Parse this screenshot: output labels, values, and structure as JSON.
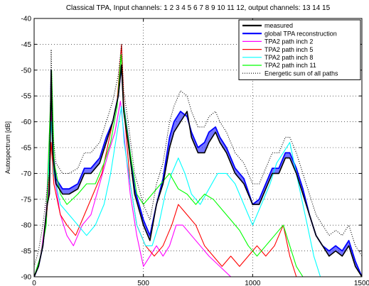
{
  "chart_data": {
    "type": "line",
    "title": "Classical TPA, Input channels: 1  2  3  4  5  6  7  8  9  10  11  12, output channels: 13  14  15",
    "ylabel": "Autospectrum [dB]",
    "xlabel": "",
    "xlim": [
      0,
      1500
    ],
    "ylim": [
      -90,
      -40
    ],
    "x_ticks": [
      0,
      500,
      1000,
      1500
    ],
    "y_ticks": [
      -90,
      -85,
      -80,
      -75,
      -70,
      -65,
      -60,
      -55,
      -50,
      -45,
      -40
    ],
    "grid": true,
    "legend_position": "top-right",
    "series": [
      {
        "name": "measured",
        "color": "#000000",
        "style": "solid",
        "points": [
          [
            0,
            -90
          ],
          [
            20,
            -88
          ],
          [
            40,
            -84
          ],
          [
            60,
            -76
          ],
          [
            70,
            -74
          ],
          [
            78,
            -50
          ],
          [
            85,
            -66
          ],
          [
            100,
            -72
          ],
          [
            130,
            -74
          ],
          [
            160,
            -74
          ],
          [
            200,
            -73
          ],
          [
            230,
            -70
          ],
          [
            260,
            -70
          ],
          [
            300,
            -68
          ],
          [
            330,
            -64
          ],
          [
            360,
            -60
          ],
          [
            385,
            -55
          ],
          [
            400,
            -49
          ],
          [
            410,
            -58
          ],
          [
            430,
            -64
          ],
          [
            460,
            -74
          ],
          [
            500,
            -80
          ],
          [
            530,
            -83
          ],
          [
            560,
            -76
          ],
          [
            590,
            -72
          ],
          [
            620,
            -65
          ],
          [
            640,
            -62
          ],
          [
            670,
            -60
          ],
          [
            700,
            -58
          ],
          [
            720,
            -63
          ],
          [
            750,
            -66
          ],
          [
            780,
            -66
          ],
          [
            800,
            -64
          ],
          [
            830,
            -62
          ],
          [
            850,
            -64
          ],
          [
            880,
            -66
          ],
          [
            920,
            -70
          ],
          [
            960,
            -72
          ],
          [
            1000,
            -76
          ],
          [
            1030,
            -76
          ],
          [
            1060,
            -73
          ],
          [
            1090,
            -70
          ],
          [
            1120,
            -70
          ],
          [
            1150,
            -67
          ],
          [
            1170,
            -67
          ],
          [
            1200,
            -70
          ],
          [
            1230,
            -74
          ],
          [
            1260,
            -78
          ],
          [
            1290,
            -82
          ],
          [
            1320,
            -84
          ],
          [
            1350,
            -86
          ],
          [
            1380,
            -85
          ],
          [
            1410,
            -86
          ],
          [
            1440,
            -84
          ],
          [
            1470,
            -88
          ],
          [
            1500,
            -90
          ]
        ]
      },
      {
        "name": "global TPA reconstruction",
        "color": "#0000ff",
        "style": "solid",
        "fill": true,
        "points": [
          [
            0,
            -90
          ],
          [
            20,
            -88
          ],
          [
            40,
            -84
          ],
          [
            60,
            -76
          ],
          [
            70,
            -73
          ],
          [
            78,
            -50
          ],
          [
            85,
            -65
          ],
          [
            100,
            -71
          ],
          [
            130,
            -73
          ],
          [
            160,
            -73
          ],
          [
            200,
            -72
          ],
          [
            230,
            -69
          ],
          [
            260,
            -69
          ],
          [
            300,
            -67
          ],
          [
            330,
            -63
          ],
          [
            360,
            -60
          ],
          [
            385,
            -55
          ],
          [
            400,
            -49
          ],
          [
            410,
            -57
          ],
          [
            430,
            -63
          ],
          [
            460,
            -73
          ],
          [
            500,
            -79
          ],
          [
            530,
            -82
          ],
          [
            560,
            -76
          ],
          [
            590,
            -71
          ],
          [
            620,
            -63
          ],
          [
            640,
            -60
          ],
          [
            670,
            -58
          ],
          [
            700,
            -59
          ],
          [
            720,
            -62
          ],
          [
            750,
            -65
          ],
          [
            780,
            -64
          ],
          [
            800,
            -62
          ],
          [
            830,
            -61
          ],
          [
            850,
            -63
          ],
          [
            880,
            -65
          ],
          [
            920,
            -69
          ],
          [
            960,
            -71
          ],
          [
            1000,
            -76
          ],
          [
            1030,
            -75
          ],
          [
            1060,
            -72
          ],
          [
            1090,
            -69
          ],
          [
            1120,
            -69
          ],
          [
            1150,
            -66
          ],
          [
            1170,
            -66
          ],
          [
            1200,
            -69
          ],
          [
            1230,
            -73
          ],
          [
            1260,
            -78
          ],
          [
            1290,
            -82
          ],
          [
            1320,
            -84
          ],
          [
            1350,
            -85
          ],
          [
            1380,
            -84
          ],
          [
            1410,
            -85
          ],
          [
            1440,
            -83
          ],
          [
            1470,
            -87
          ],
          [
            1500,
            -90
          ]
        ]
      },
      {
        "name": "TPA2 path inch 2",
        "color": "#ff00ff",
        "style": "solid",
        "points": [
          [
            0,
            -90
          ],
          [
            30,
            -86
          ],
          [
            55,
            -78
          ],
          [
            70,
            -62
          ],
          [
            78,
            -58
          ],
          [
            90,
            -70
          ],
          [
            120,
            -78
          ],
          [
            150,
            -82
          ],
          [
            180,
            -84
          ],
          [
            220,
            -80
          ],
          [
            260,
            -78
          ],
          [
            300,
            -72
          ],
          [
            340,
            -66
          ],
          [
            370,
            -62
          ],
          [
            395,
            -56
          ],
          [
            410,
            -62
          ],
          [
            440,
            -74
          ],
          [
            470,
            -82
          ],
          [
            500,
            -88
          ],
          [
            530,
            -86
          ],
          [
            560,
            -84
          ],
          [
            590,
            -86
          ],
          [
            620,
            -84
          ],
          [
            650,
            -80
          ],
          [
            680,
            -80
          ],
          [
            720,
            -82
          ],
          [
            760,
            -84
          ],
          [
            800,
            -86
          ],
          [
            850,
            -88
          ],
          [
            900,
            -90
          ]
        ]
      },
      {
        "name": "TPA2 path inch 5",
        "color": "#ff0000",
        "style": "solid",
        "points": [
          [
            0,
            -90
          ],
          [
            30,
            -86
          ],
          [
            55,
            -80
          ],
          [
            70,
            -70
          ],
          [
            78,
            -64
          ],
          [
            90,
            -72
          ],
          [
            120,
            -78
          ],
          [
            150,
            -80
          ],
          [
            190,
            -82
          ],
          [
            230,
            -78
          ],
          [
            270,
            -74
          ],
          [
            310,
            -70
          ],
          [
            350,
            -62
          ],
          [
            380,
            -56
          ],
          [
            400,
            -45
          ],
          [
            412,
            -58
          ],
          [
            440,
            -72
          ],
          [
            470,
            -80
          ],
          [
            510,
            -84
          ],
          [
            550,
            -86
          ],
          [
            590,
            -84
          ],
          [
            630,
            -80
          ],
          [
            660,
            -76
          ],
          [
            700,
            -78
          ],
          [
            740,
            -80
          ],
          [
            780,
            -84
          ],
          [
            820,
            -86
          ],
          [
            860,
            -88
          ],
          [
            900,
            -86
          ],
          [
            940,
            -88
          ],
          [
            980,
            -86
          ],
          [
            1020,
            -84
          ],
          [
            1060,
            -86
          ],
          [
            1100,
            -84
          ],
          [
            1140,
            -80
          ],
          [
            1170,
            -86
          ],
          [
            1200,
            -90
          ]
        ]
      },
      {
        "name": "TPA2 path inch 8",
        "color": "#00ffff",
        "style": "solid",
        "points": [
          [
            0,
            -90
          ],
          [
            30,
            -86
          ],
          [
            55,
            -80
          ],
          [
            70,
            -66
          ],
          [
            78,
            -60
          ],
          [
            90,
            -70
          ],
          [
            120,
            -76
          ],
          [
            160,
            -78
          ],
          [
            200,
            -80
          ],
          [
            240,
            -82
          ],
          [
            280,
            -80
          ],
          [
            320,
            -76
          ],
          [
            350,
            -70
          ],
          [
            380,
            -62
          ],
          [
            400,
            -57
          ],
          [
            412,
            -64
          ],
          [
            440,
            -72
          ],
          [
            470,
            -80
          ],
          [
            510,
            -84
          ],
          [
            540,
            -84
          ],
          [
            570,
            -80
          ],
          [
            600,
            -74
          ],
          [
            630,
            -70
          ],
          [
            660,
            -67
          ],
          [
            690,
            -70
          ],
          [
            720,
            -74
          ],
          [
            760,
            -76
          ],
          [
            800,
            -73
          ],
          [
            840,
            -70
          ],
          [
            880,
            -70
          ],
          [
            920,
            -72
          ],
          [
            960,
            -76
          ],
          [
            1000,
            -80
          ],
          [
            1040,
            -76
          ],
          [
            1080,
            -72
          ],
          [
            1110,
            -68
          ],
          [
            1140,
            -66
          ],
          [
            1170,
            -64
          ],
          [
            1190,
            -68
          ],
          [
            1220,
            -74
          ],
          [
            1250,
            -80
          ],
          [
            1280,
            -86
          ],
          [
            1310,
            -90
          ]
        ]
      },
      {
        "name": "TPA2 path inch 11",
        "color": "#00ff00",
        "style": "solid",
        "points": [
          [
            0,
            -90
          ],
          [
            30,
            -86
          ],
          [
            55,
            -80
          ],
          [
            70,
            -62
          ],
          [
            80,
            -50
          ],
          [
            92,
            -68
          ],
          [
            120,
            -74
          ],
          [
            150,
            -76
          ],
          [
            200,
            -74
          ],
          [
            240,
            -72
          ],
          [
            280,
            -72
          ],
          [
            320,
            -68
          ],
          [
            350,
            -64
          ],
          [
            380,
            -57
          ],
          [
            398,
            -47
          ],
          [
            410,
            -57
          ],
          [
            440,
            -66
          ],
          [
            470,
            -74
          ],
          [
            500,
            -76
          ],
          [
            540,
            -74
          ],
          [
            580,
            -72
          ],
          [
            620,
            -70
          ],
          [
            660,
            -73
          ],
          [
            700,
            -74
          ],
          [
            740,
            -76
          ],
          [
            780,
            -74
          ],
          [
            820,
            -75
          ],
          [
            860,
            -77
          ],
          [
            900,
            -79
          ],
          [
            940,
            -81
          ],
          [
            980,
            -84
          ],
          [
            1020,
            -86
          ],
          [
            1060,
            -84
          ],
          [
            1100,
            -82
          ],
          [
            1140,
            -80
          ],
          [
            1170,
            -84
          ],
          [
            1200,
            -88
          ],
          [
            1230,
            -90
          ]
        ]
      },
      {
        "name": "Energetic sum of all paths",
        "color": "#000000",
        "style": "dotted",
        "points": [
          [
            0,
            -88
          ],
          [
            20,
            -85
          ],
          [
            40,
            -80
          ],
          [
            60,
            -73
          ],
          [
            70,
            -70
          ],
          [
            78,
            -46
          ],
          [
            85,
            -62
          ],
          [
            100,
            -68
          ],
          [
            130,
            -70
          ],
          [
            160,
            -70
          ],
          [
            200,
            -69
          ],
          [
            230,
            -66
          ],
          [
            260,
            -66
          ],
          [
            300,
            -64
          ],
          [
            330,
            -60
          ],
          [
            360,
            -56
          ],
          [
            385,
            -51
          ],
          [
            400,
            -45
          ],
          [
            410,
            -54
          ],
          [
            430,
            -60
          ],
          [
            460,
            -70
          ],
          [
            500,
            -76
          ],
          [
            530,
            -79
          ],
          [
            560,
            -72
          ],
          [
            590,
            -68
          ],
          [
            620,
            -60
          ],
          [
            640,
            -57
          ],
          [
            670,
            -54
          ],
          [
            700,
            -55
          ],
          [
            720,
            -58
          ],
          [
            750,
            -61
          ],
          [
            780,
            -61
          ],
          [
            800,
            -59
          ],
          [
            830,
            -58
          ],
          [
            850,
            -60
          ],
          [
            880,
            -62
          ],
          [
            920,
            -66
          ],
          [
            960,
            -68
          ],
          [
            1000,
            -72
          ],
          [
            1030,
            -72
          ],
          [
            1060,
            -69
          ],
          [
            1090,
            -66
          ],
          [
            1120,
            -66
          ],
          [
            1150,
            -63
          ],
          [
            1170,
            -63
          ],
          [
            1200,
            -66
          ],
          [
            1230,
            -70
          ],
          [
            1260,
            -74
          ],
          [
            1290,
            -78
          ],
          [
            1320,
            -80
          ],
          [
            1350,
            -82
          ],
          [
            1380,
            -81
          ],
          [
            1410,
            -82
          ],
          [
            1440,
            -80
          ],
          [
            1470,
            -84
          ],
          [
            1500,
            -86
          ]
        ]
      }
    ]
  }
}
